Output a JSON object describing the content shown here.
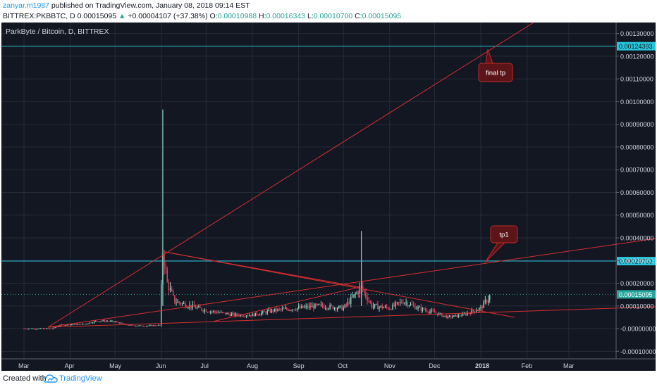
{
  "header": {
    "author": "zanyar.m1987",
    "published_text": "published on TradingView.com, January 08, 2018 09:14 EST",
    "symbol": "BITTREX:PKBBTC, D",
    "last_price": "0.00015095",
    "change_arrow": "▲",
    "change": "+0.00004107 (+37.38%)",
    "o_label": "O:",
    "o_value": "0.00010988",
    "h_label": "H:",
    "h_value": "0.00016343",
    "l_label": "L:",
    "l_value": "0.00010700",
    "c_label": "C:",
    "c_value": "0.00015095"
  },
  "footer": {
    "created_with": "Created with",
    "brand": "TradingView"
  },
  "colors": {
    "background": "#131722",
    "grid": "#262b3a",
    "up_candle": "#8ed6bf",
    "down_candle": "#e2435c",
    "trendline": "#d32f2f",
    "horizontal_level": "#26c6da",
    "callout_bg": "#5b1418",
    "callout_border": "#c62828",
    "axis_text": "#d1d4dc"
  },
  "chart_data": {
    "type": "candlestick",
    "title": "ParkByte / Bitcoin, D, BITTREX",
    "x_labels": [
      "Mar",
      "Apr",
      "May",
      "Jun",
      "Jul",
      "Aug",
      "Sep",
      "Oct",
      "Nov",
      "Dec",
      "2018",
      "Feb",
      "Mar"
    ],
    "y_ticks": [
      "0.00130000",
      "0.00120000",
      "0.00110000",
      "0.00100000",
      "0.00090000",
      "0.00080000",
      "0.00070000",
      "0.00060000",
      "0.00050000",
      "0.00040000",
      "0.00030000",
      "0.00020000",
      "0.00010000",
      "-0.00000000",
      "-0.00010000"
    ],
    "ylim": [
      -0.00013,
      0.00137
    ],
    "grid": true,
    "horizontal_levels": [
      {
        "value": 0.00124393,
        "label": "0.00124393"
      },
      {
        "value": 0.0002975,
        "label": "0.00029750"
      }
    ],
    "last_price": {
      "value": 0.00015095,
      "label": "0.00015095"
    },
    "callouts": [
      "final tp",
      "tp1"
    ],
    "trendlines": [
      {
        "from": {
          "x": "Mar 20",
          "y": 0.0
        },
        "to": {
          "x": "Mar 26",
          "y": 0.00137
        }
      },
      {
        "from": {
          "x": "Mar 20",
          "y": -5.3e-06
        },
        "to": {
          "x": "Mar 26",
          "y": 0.0004
        }
      },
      {
        "from": {
          "x": "Jun 1",
          "y": 0.000345
        },
        "to": {
          "x": "Jan 25",
          "y": 2.5e-05
        }
      },
      {
        "from": {
          "x": "Mar 20",
          "y": -5.3e-06
        },
        "to": {
          "x": "Mar 26",
          "y": 9.5e-05
        }
      },
      {
        "from": {
          "x": "Jun 1",
          "y": 0.000345
        },
        "to": {
          "x": "Oct 13",
          "y": 0.000195
        }
      },
      {
        "from": {
          "x": "Jul 15",
          "y": 2e-05
        },
        "to": {
          "x": "Oct 13",
          "y": 0.000195
        }
      }
    ],
    "daily_closes": [
      {
        "x": "Mar 1",
        "y": 0.0
      },
      {
        "x": "Mar 10",
        "y": 0.0
      },
      {
        "x": "Mar 15",
        "y": 0.0
      },
      {
        "x": "Mar 20",
        "y": 0.0
      },
      {
        "x": "Mar 25",
        "y": 1.5e-05
      },
      {
        "x": "Apr 1",
        "y": 1.8e-05
      },
      {
        "x": "Apr 10",
        "y": 2e-05
      },
      {
        "x": "Apr 20",
        "y": 3.5e-05
      },
      {
        "x": "May 1",
        "y": 3e-05
      },
      {
        "x": "May 10",
        "y": 1.5e-05
      },
      {
        "x": "May 20",
        "y": 1.2e-05
      },
      {
        "x": "May 31",
        "y": 1.5e-05
      },
      {
        "x": "Jun 2",
        "y": 0.00034
      },
      {
        "x": "Jun 5",
        "y": 0.0002
      },
      {
        "x": "Jun 10",
        "y": 0.00012
      },
      {
        "x": "Jun 20",
        "y": 0.0001
      },
      {
        "x": "Jul 1",
        "y": 8e-05
      },
      {
        "x": "Jul 10",
        "y": 7e-05
      },
      {
        "x": "Jul 20",
        "y": 6e-05
      },
      {
        "x": "Aug 1",
        "y": 6e-05
      },
      {
        "x": "Aug 15",
        "y": 8e-05
      },
      {
        "x": "Sep 1",
        "y": 9e-05
      },
      {
        "x": "Sep 15",
        "y": 0.0001
      },
      {
        "x": "Oct 1",
        "y": 9e-05
      },
      {
        "x": "Oct 13",
        "y": 0.00018
      },
      {
        "x": "Oct 20",
        "y": 0.0001
      },
      {
        "x": "Nov 1",
        "y": 9e-05
      },
      {
        "x": "Nov 10",
        "y": 0.00012
      },
      {
        "x": "Nov 20",
        "y": 9e-05
      },
      {
        "x": "Dec 1",
        "y": 7e-05
      },
      {
        "x": "Dec 10",
        "y": 5e-05
      },
      {
        "x": "Dec 20",
        "y": 6e-05
      },
      {
        "x": "Jan 1",
        "y": 9e-05
      },
      {
        "x": "Jan 8",
        "y": 0.00015095
      }
    ],
    "spikes": [
      {
        "x": "Jun 2",
        "high": 0.000965
      },
      {
        "x": "Oct 13",
        "high": 0.00043
      }
    ]
  }
}
